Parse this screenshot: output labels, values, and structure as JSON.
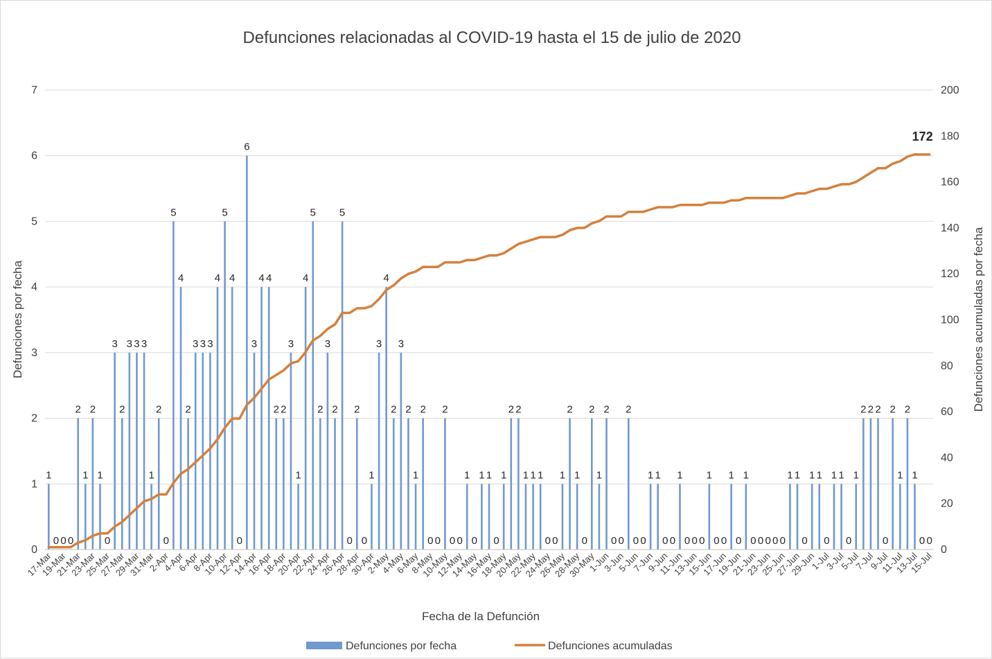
{
  "chart_data": {
    "type": "bar+line",
    "title": "Defunciones relacionadas al COVID-19 hasta el 15 de julio de 2020",
    "xlabel": "Fecha de la Defunción",
    "ylabel_left": "Defunciones por fecha",
    "ylabel_right": "Defunciones acumuladas por fecha",
    "ylim_left": [
      0,
      7
    ],
    "ylim_right": [
      0,
      200
    ],
    "yticks_left": [
      "0",
      "1",
      "2",
      "3",
      "4",
      "5",
      "6",
      "7"
    ],
    "yticks_right": [
      "0",
      "20",
      "40",
      "60",
      "80",
      "100",
      "120",
      "140",
      "160",
      "180",
      "200"
    ],
    "grid": true,
    "legend_position": "bottom",
    "colors": {
      "bars": "#7199cf",
      "line": "#d4803c",
      "grid": "#d9d9d9"
    },
    "categories": [
      "17-Mar",
      "18-Mar",
      "19-Mar",
      "20-Mar",
      "21-Mar",
      "22-Mar",
      "23-Mar",
      "24-Mar",
      "25-Mar",
      "26-Mar",
      "27-Mar",
      "28-Mar",
      "29-Mar",
      "30-Mar",
      "31-Mar",
      "1-Apr",
      "2-Apr",
      "3-Apr",
      "4-Apr",
      "5-Apr",
      "6-Apr",
      "7-Apr",
      "8-Apr",
      "9-Apr",
      "10-Apr",
      "11-Apr",
      "12-Apr",
      "13-Apr",
      "14-Apr",
      "15-Apr",
      "16-Apr",
      "17-Apr",
      "18-Apr",
      "19-Apr",
      "20-Apr",
      "21-Apr",
      "22-Apr",
      "23-Apr",
      "24-Apr",
      "25-Apr",
      "26-Apr",
      "27-Apr",
      "28-Apr",
      "29-Apr",
      "30-Apr",
      "1-May",
      "2-May",
      "3-May",
      "4-May",
      "5-May",
      "6-May",
      "7-May",
      "8-May",
      "9-May",
      "10-May",
      "11-May",
      "12-May",
      "13-May",
      "14-May",
      "15-May",
      "16-May",
      "17-May",
      "18-May",
      "19-May",
      "20-May",
      "21-May",
      "22-May",
      "23-May",
      "24-May",
      "25-May",
      "26-May",
      "27-May",
      "28-May",
      "29-May",
      "30-May",
      "31-May",
      "1-Jun",
      "2-Jun",
      "3-Jun",
      "4-Jun",
      "5-Jun",
      "6-Jun",
      "7-Jun",
      "8-Jun",
      "9-Jun",
      "10-Jun",
      "11-Jun",
      "12-Jun",
      "13-Jun",
      "14-Jun",
      "15-Jun",
      "16-Jun",
      "17-Jun",
      "18-Jun",
      "19-Jun",
      "20-Jun",
      "21-Jun",
      "22-Jun",
      "23-Jun",
      "24-Jun",
      "25-Jun",
      "26-Jun",
      "27-Jun",
      "28-Jun",
      "29-Jun",
      "30-Jun",
      "1-Jul",
      "2-Jul",
      "3-Jul",
      "4-Jul",
      "5-Jul",
      "6-Jul",
      "7-Jul",
      "8-Jul",
      "9-Jul",
      "10-Jul",
      "11-Jul",
      "12-Jul",
      "13-Jul",
      "14-Jul",
      "15-Jul"
    ],
    "series": [
      {
        "name": "Defunciones por fecha",
        "type": "bar",
        "axis": "left",
        "values": [
          1,
          0,
          0,
          0,
          2,
          1,
          2,
          1,
          0,
          3,
          2,
          3,
          3,
          3,
          1,
          2,
          0,
          5,
          4,
          2,
          3,
          3,
          3,
          4,
          5,
          4,
          0,
          6,
          3,
          4,
          4,
          2,
          2,
          3,
          1,
          4,
          5,
          2,
          3,
          2,
          5,
          0,
          2,
          0,
          1,
          3,
          4,
          2,
          3,
          2,
          1,
          2,
          0,
          0,
          2,
          0,
          0,
          1,
          0,
          1,
          1,
          0,
          1,
          2,
          2,
          1,
          1,
          1,
          0,
          0,
          1,
          2,
          1,
          0,
          2,
          1,
          2,
          0,
          0,
          2,
          0,
          0,
          1,
          1,
          0,
          0,
          1,
          0,
          0,
          0,
          1,
          0,
          0,
          1,
          0,
          1,
          0,
          0,
          0,
          0,
          0,
          1,
          1,
          0,
          1,
          1,
          0,
          1,
          1,
          0,
          1,
          2,
          2,
          2,
          0,
          2,
          1,
          2,
          1,
          0,
          0
        ]
      },
      {
        "name": "Defunciones acumuladas",
        "type": "line",
        "axis": "right",
        "values": [
          1,
          1,
          1,
          1,
          3,
          4,
          6,
          7,
          7,
          10,
          12,
          15,
          18,
          21,
          22,
          24,
          24,
          29,
          33,
          35,
          38,
          41,
          44,
          48,
          53,
          57,
          57,
          63,
          66,
          70,
          74,
          76,
          78,
          81,
          82,
          86,
          91,
          93,
          96,
          98,
          103,
          103,
          105,
          105,
          106,
          109,
          113,
          115,
          118,
          120,
          121,
          123,
          123,
          123,
          125,
          125,
          125,
          126,
          126,
          127,
          128,
          128,
          129,
          131,
          133,
          134,
          135,
          136,
          136,
          136,
          137,
          139,
          140,
          140,
          142,
          143,
          145,
          145,
          145,
          147,
          147,
          147,
          148,
          149,
          149,
          149,
          150,
          150,
          150,
          150,
          151,
          151,
          151,
          152,
          152,
          153,
          153,
          153,
          153,
          153,
          153,
          154,
          155,
          155,
          156,
          157,
          157,
          158,
          159,
          159,
          160,
          162,
          164,
          166,
          166,
          168,
          169,
          171,
          172,
          172,
          172
        ]
      }
    ],
    "end_label": "172",
    "legend": [
      "Defunciones por fecha",
      "Defunciones acumuladas"
    ]
  }
}
